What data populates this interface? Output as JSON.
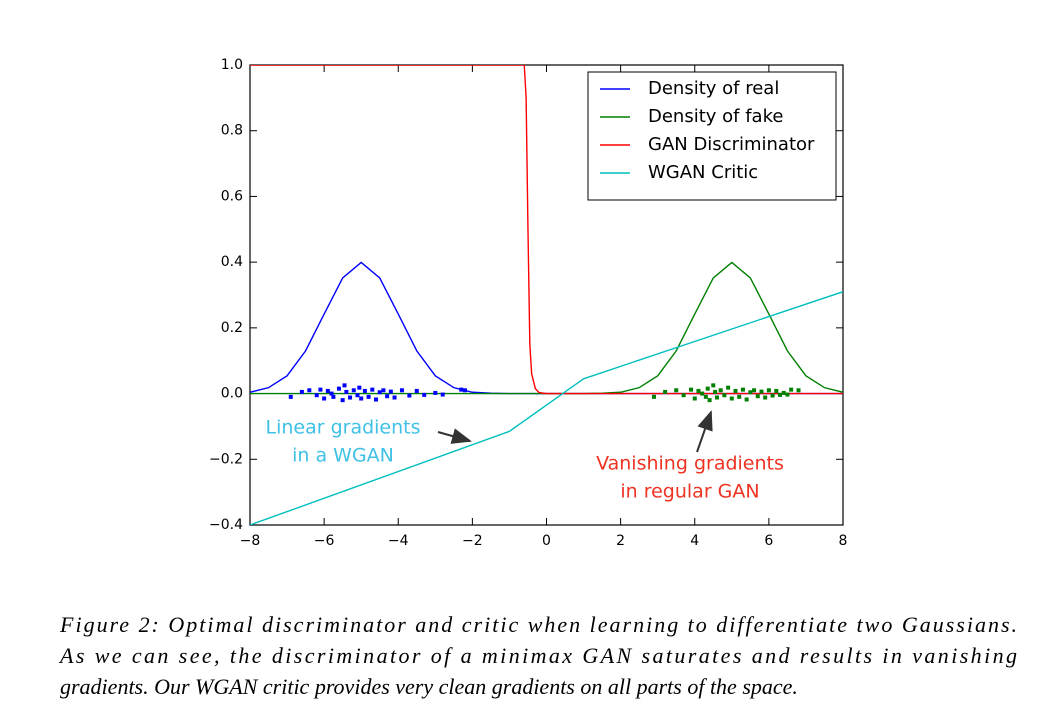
{
  "chart_data": {
    "type": "line",
    "xlim": [
      -8,
      8
    ],
    "ylim": [
      -0.4,
      1.0
    ],
    "xticks": [
      {
        "value": -8,
        "label": "−8"
      },
      {
        "value": -6,
        "label": "−6"
      },
      {
        "value": -4,
        "label": "−4"
      },
      {
        "value": -2,
        "label": "−2"
      },
      0,
      2,
      4,
      6,
      8
    ],
    "yticks": [
      {
        "value": -0.4,
        "label": "−0.4"
      },
      {
        "value": -0.2,
        "label": "−0.2"
      },
      {
        "value": 0,
        "label": "0.0"
      },
      0.2,
      0.4,
      0.6,
      0.8,
      {
        "value": 1.0,
        "label": "1.0"
      }
    ],
    "legend": "upper right",
    "series": [
      {
        "name": "Density of real",
        "color": "#0000ff",
        "x": [
          -8,
          -7.5,
          -7,
          -6.5,
          -6,
          -5.5,
          -5,
          -4.5,
          -4,
          -3.5,
          -3,
          -2.5,
          -2,
          -1.5,
          -1,
          -0.5,
          0,
          0.5,
          1,
          1.5,
          2,
          2.5,
          3,
          3.5,
          4,
          4.5,
          5,
          5.5,
          6,
          6.5,
          7,
          7.5,
          8
        ],
        "values": [
          0.004,
          0.018,
          0.054,
          0.13,
          0.242,
          0.352,
          0.399,
          0.352,
          0.242,
          0.13,
          0.054,
          0.018,
          0.004,
          0.001,
          0,
          0,
          0,
          0,
          0,
          0,
          0,
          0,
          0,
          0,
          0,
          0,
          0,
          0,
          0,
          0,
          0,
          0,
          0
        ]
      },
      {
        "name": "Density of fake",
        "color": "#008000",
        "x": [
          -8,
          -7.5,
          -7,
          -6.5,
          -6,
          -5.5,
          -5,
          -4.5,
          -4,
          -3.5,
          -3,
          -2.5,
          -2,
          -1.5,
          -1,
          -0.5,
          0,
          0.5,
          1,
          1.5,
          2,
          2.5,
          3,
          3.5,
          4,
          4.5,
          5,
          5.5,
          6,
          6.5,
          7,
          7.5,
          8
        ],
        "values": [
          0,
          0,
          0,
          0,
          0,
          0,
          0,
          0,
          0,
          0,
          0,
          0,
          0,
          0,
          0,
          0,
          0,
          0,
          0,
          0.001,
          0.004,
          0.018,
          0.054,
          0.13,
          0.242,
          0.352,
          0.399,
          0.352,
          0.242,
          0.13,
          0.054,
          0.018,
          0.004
        ]
      },
      {
        "name": "GAN Discriminator",
        "color": "#ff0000",
        "x": [
          -8,
          -0.6,
          -0.55,
          -0.5,
          -0.45,
          -0.4,
          -0.3,
          -0.2,
          0,
          8
        ],
        "values": [
          1.0,
          1.0,
          0.9,
          0.5,
          0.15,
          0.06,
          0.015,
          0.003,
          0,
          0
        ]
      },
      {
        "name": "WGAN Critic",
        "color": "#00bfbf",
        "x": [
          -8,
          -1,
          1,
          8
        ],
        "values": [
          -0.4,
          -0.115,
          0.045,
          0.31
        ]
      },
      {
        "type": "scatter",
        "color": "#0000ff",
        "x": [
          -6.9,
          -6.6,
          -6.4,
          -6.2,
          -6.1,
          -6.0,
          -5.9,
          -5.8,
          -5.75,
          -5.6,
          -5.5,
          -5.45,
          -5.4,
          -5.3,
          -5.2,
          -5.1,
          -5.05,
          -5.0,
          -4.9,
          -4.8,
          -4.7,
          -4.6,
          -4.5,
          -4.4,
          -4.3,
          -4.2,
          -4.1,
          -3.9,
          -3.7,
          -3.5,
          -3.3,
          -3.0,
          -2.8,
          -2.3,
          -2.2
        ],
        "values": [
          -0.01,
          0.005,
          0.01,
          -0.005,
          0.012,
          -0.015,
          0.008,
          0.0,
          -0.01,
          0.015,
          -0.02,
          0.025,
          0.005,
          -0.012,
          0.01,
          -0.005,
          0.018,
          -0.015,
          0.008,
          -0.01,
          0.012,
          -0.018,
          0.004,
          0.01,
          -0.008,
          0.006,
          -0.012,
          0.01,
          -0.006,
          0.008,
          -0.004,
          0.002,
          -0.003,
          0.012,
          0.01
        ]
      },
      {
        "type": "scatter",
        "color": "#008000",
        "x": [
          2.9,
          3.2,
          3.5,
          3.7,
          3.9,
          4.0,
          4.1,
          4.2,
          4.3,
          4.35,
          4.4,
          4.5,
          4.55,
          4.6,
          4.7,
          4.8,
          4.9,
          5.0,
          5.1,
          5.2,
          5.3,
          5.4,
          5.5,
          5.6,
          5.7,
          5.8,
          5.9,
          6.0,
          6.1,
          6.2,
          6.3,
          6.4,
          6.5,
          6.6,
          6.8
        ],
        "values": [
          -0.01,
          0.005,
          0.01,
          -0.005,
          0.012,
          -0.015,
          0.008,
          0.0,
          -0.01,
          0.015,
          -0.02,
          0.025,
          0.005,
          -0.012,
          0.01,
          -0.005,
          0.018,
          -0.015,
          0.008,
          -0.01,
          0.012,
          -0.018,
          0.004,
          0.01,
          -0.008,
          0.006,
          -0.012,
          0.01,
          -0.006,
          0.008,
          -0.004,
          0.002,
          -0.003,
          0.012,
          0.01
        ]
      }
    ],
    "annotations": [
      {
        "lines": [
          "Linear gradients",
          "in a WGAN"
        ],
        "color": "#3fc1e6"
      },
      {
        "lines": [
          "Vanishing gradients",
          "in regular GAN"
        ],
        "color": "#ee3322"
      }
    ]
  },
  "caption": [
    "Figure 2: Optimal discriminator and critic when learning to differentiate two Gaussians.",
    "As we can see, the discriminator of a minimax GAN saturates and results in vanishing",
    "gradients. Our WGAN critic provides very clean gradients on all parts of the space."
  ]
}
